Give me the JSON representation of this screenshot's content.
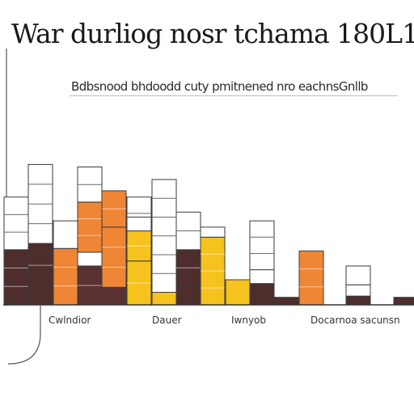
{
  "title": "War durliog nosr tchama 180L1",
  "subtitle": "Bdbsnood bhdoodd cuty pmitnened nro eachnsGnllb",
  "chart_data": {
    "type": "bar",
    "stacked": true,
    "title": "War durliog nosr tchama 180L1",
    "subtitle": "Bdbsnood bhdoodd cuty pmitnened nro eachnsGnllb",
    "xlabel": "",
    "ylabel": "",
    "ylim": [
      0,
      15
    ],
    "grid": false,
    "legend": "none",
    "category_labels": [
      "Cwlndior",
      "Dauer",
      "Iwnyob",
      "Docarnoa sacunsn"
    ],
    "stacks": [
      {
        "segments": [
          {
            "value": 4.4,
            "color": "#4e2d2d"
          },
          {
            "value": 4.2,
            "color": "#ffffff"
          }
        ]
      },
      {
        "segments": [
          {
            "value": 1.4,
            "color": "#4e2d2d"
          },
          {
            "value": 3.5,
            "color": "#4e2d2d",
            "outlined": true
          },
          {
            "value": 6.3,
            "color": "#ffffff"
          }
        ]
      },
      {
        "segments": [
          {
            "value": 4.5,
            "color": "#ef8636"
          },
          {
            "value": 2.2,
            "color": "#ffffff"
          }
        ]
      },
      {
        "segments": [
          {
            "value": 3.1,
            "color": "#5b3131"
          },
          {
            "value": 1.1,
            "color": "#ffffff"
          },
          {
            "value": 4.0,
            "color": "#ef8636"
          },
          {
            "value": 2.8,
            "color": "#ffffff"
          }
        ]
      },
      {
        "segments": [
          {
            "value": 1.4,
            "color": "#5b3131"
          },
          {
            "value": 4.8,
            "color": "#ef8636"
          },
          {
            "value": 2.9,
            "color": "#ef8636"
          }
        ]
      },
      {
        "segments": [
          {
            "value": 3.4,
            "color": "#ef8636"
          },
          {
            "value": 5.2,
            "color": "#ffffff"
          }
        ]
      },
      {
        "segments": [
          {
            "value": 3.5,
            "color": "#f6c21d"
          },
          {
            "value": 2.4,
            "color": "#f6c21d"
          },
          {
            "value": 1.1,
            "color": "#ffffff"
          }
        ]
      },
      {
        "segments": [
          {
            "value": 1.0,
            "color": "#f6c21d"
          },
          {
            "value": 9.0,
            "color": "#ffffff"
          }
        ]
      },
      {
        "segments": [
          {
            "value": 1.5,
            "color": "#4e2d2d"
          },
          {
            "value": 2.9,
            "color": "#4e2d2d"
          },
          {
            "value": 3.0,
            "color": "#ffffff"
          }
        ]
      },
      {
        "segments": [
          {
            "value": 5.4,
            "color": "#f6c21d"
          },
          {
            "value": 0.8,
            "color": "#ffffff"
          }
        ]
      },
      {
        "segments": [
          {
            "value": 2.0,
            "color": "#f6c21d"
          }
        ]
      },
      {
        "segments": [
          {
            "value": 1.7,
            "color": "#4e2d2d"
          },
          {
            "value": 1.1,
            "color": "#ffffff"
          },
          {
            "value": 3.9,
            "color": "#ffffff"
          }
        ]
      },
      {
        "segments": [
          {
            "value": 0.6,
            "color": "#4e2d2d"
          }
        ]
      },
      {
        "segments": [
          {
            "value": 4.3,
            "color": "#ef8636"
          }
        ]
      },
      {
        "segments": [
          {
            "value": 0.7,
            "color": "#4e2d2d"
          },
          {
            "value": 0.9,
            "color": "#ffffff"
          },
          {
            "value": 1.5,
            "color": "#ffffff"
          }
        ]
      },
      {
        "segments": [
          {
            "value": 0.6,
            "color": "#4e2d2d"
          }
        ]
      }
    ]
  }
}
